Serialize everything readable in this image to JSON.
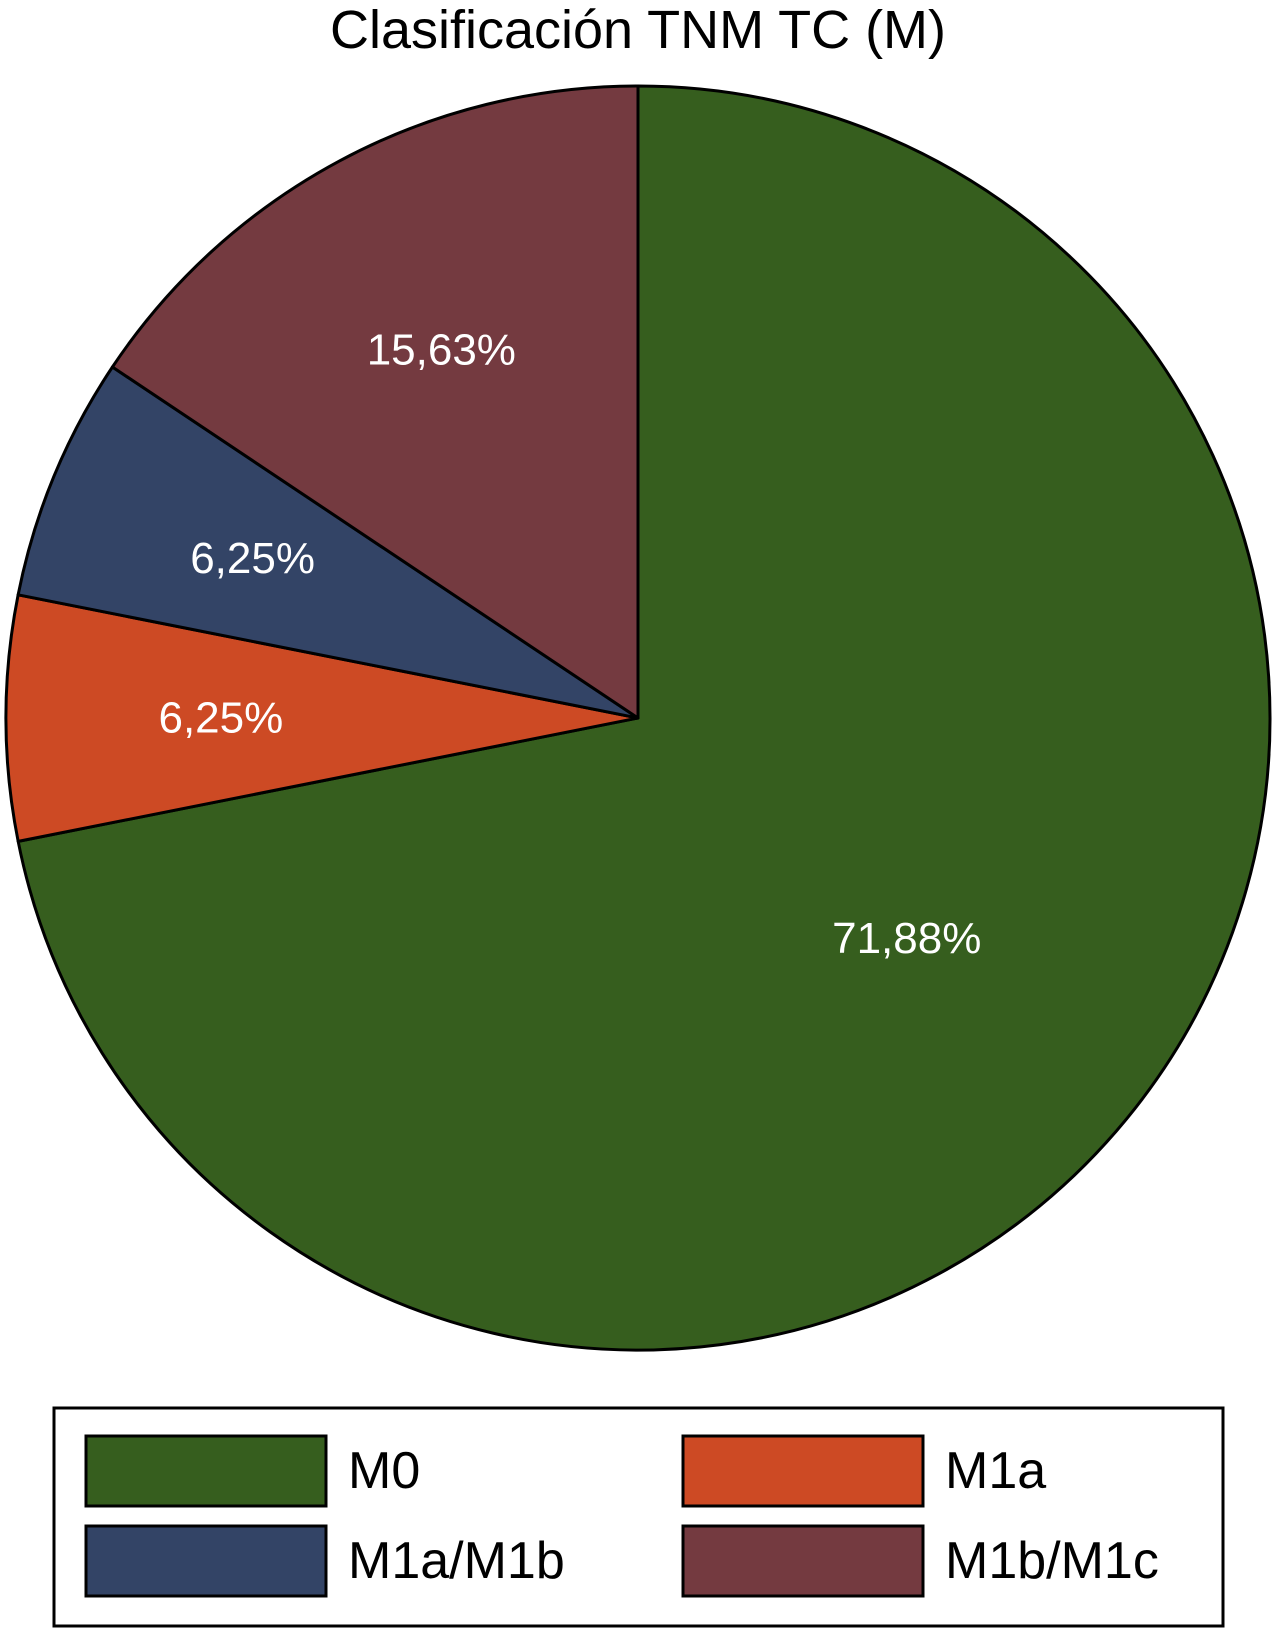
{
  "chart_data": {
    "type": "pie",
    "title": "Clasificación TNM TC (M)",
    "slices": [
      {
        "name": "M0",
        "value": 71.88,
        "label": "71,88%",
        "color": "#365e1e"
      },
      {
        "name": "M1a",
        "value": 6.25,
        "label": "6,25%",
        "color": "#cd4a24"
      },
      {
        "name": "M1a/M1b",
        "value": 6.25,
        "label": "6,25%",
        "color": "#334466"
      },
      {
        "name": "M1b/M1c",
        "value": 15.63,
        "label": "15,63%",
        "color": "#743a40"
      }
    ],
    "start_angle_deg": 0,
    "direction": "clockwise",
    "legend": {
      "position": "bottom",
      "columns": 2
    }
  }
}
